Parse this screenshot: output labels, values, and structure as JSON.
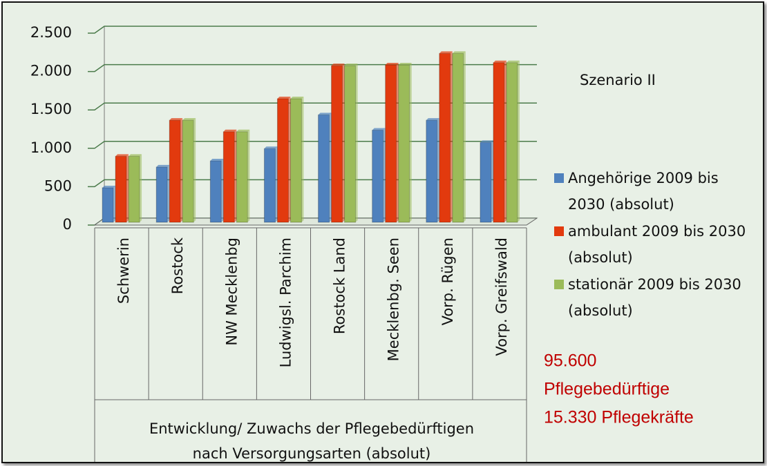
{
  "chart_data": {
    "type": "bar",
    "subtitle": "Szenario II",
    "xlabel": [
      "Entwicklung/ Zuwachs der Pflegebedürftigen",
      "nach Versorgungsarten (absolut)"
    ],
    "annotations": [
      "95.600",
      "Pflegebedürftige",
      "15.330 Pflegekräfte"
    ],
    "annotation_color": "#c00000",
    "categories": [
      "Schwerin",
      "Rostock",
      "NW Mecklenbg",
      "Ludwigsl. Parchim",
      "Rostock Land",
      "Mecklenbg. Seen",
      "Vorp. Rügen",
      "Vorp. Greifswald"
    ],
    "series": [
      {
        "name": "Angehörige 2009 bis 2030 (absolut)",
        "color": "#4f81bd",
        "values": [
          450,
          720,
          800,
          960,
          1400,
          1200,
          1330,
          1040
        ]
      },
      {
        "name": "ambulant 2009 bis 2030 (absolut)",
        "color": "#e23a0e",
        "values": [
          860,
          1330,
          1180,
          1610,
          2040,
          2050,
          2200,
          2080
        ]
      },
      {
        "name": "stationär 2009 bis 2030 (absolut)",
        "color": "#9bbb59",
        "values": [
          860,
          1330,
          1180,
          1610,
          2040,
          2050,
          2200,
          2080
        ]
      }
    ],
    "ylim": [
      0,
      2500
    ],
    "yticks": [
      0,
      500,
      {
        "value": 1000,
        "label": "1.000"
      },
      {
        "value": 1500,
        "label": "1.500"
      },
      {
        "value": 2000,
        "label": "2.000"
      },
      {
        "value": 2500,
        "label": "2.500"
      }
    ],
    "grid": true,
    "legend": "right"
  }
}
